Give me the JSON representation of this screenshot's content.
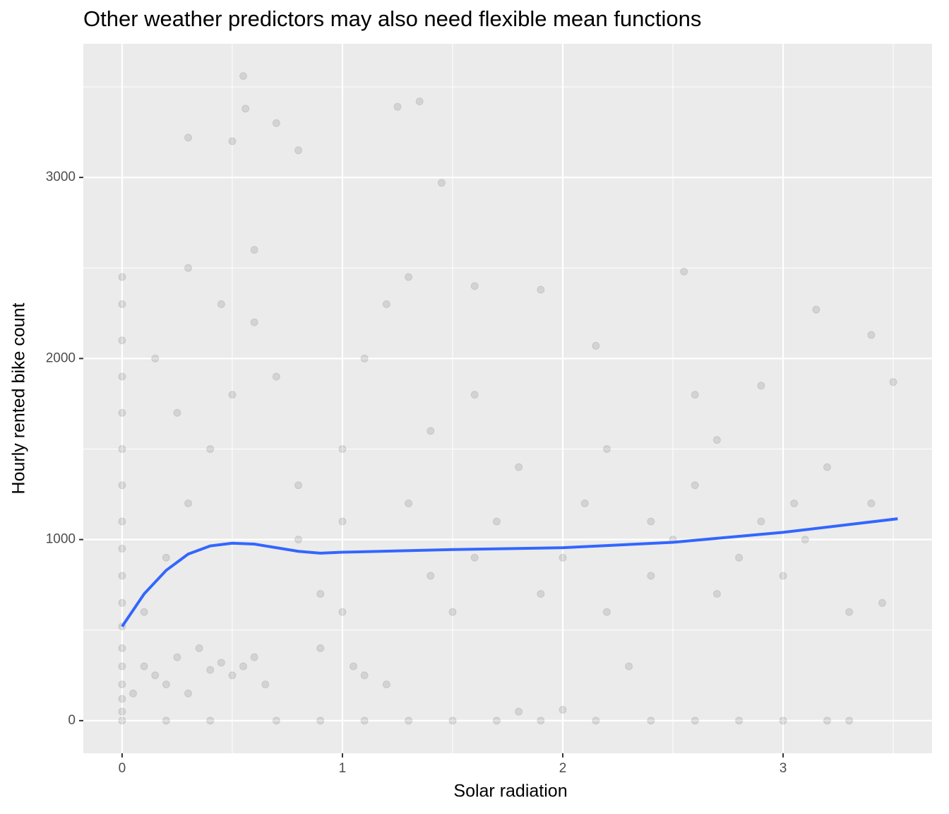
{
  "chart_data": {
    "type": "scatter",
    "title": "Other weather predictors may also need flexible mean functions",
    "x_label": "Solar radiation",
    "y_label": "Hourly rented bike count",
    "xlim": [
      -0.176,
      3.676
    ],
    "ylim": [
      -180,
      3738
    ],
    "xticks": [
      0,
      1,
      2,
      3
    ],
    "yticks": [
      0,
      1000,
      2000,
      3000
    ],
    "xminor": [
      0.5,
      1.5,
      2.5,
      3.5
    ],
    "yminor": [
      500,
      1500,
      2500,
      3500
    ],
    "grid": true,
    "points": {
      "color": "#000000",
      "opacity": 0.1,
      "x": [
        0,
        0,
        0,
        0,
        0,
        0,
        0,
        0,
        0,
        0,
        0,
        0,
        0,
        0,
        0,
        0,
        0,
        0,
        0.05,
        0.1,
        0.15,
        0.2,
        0.25,
        0.3,
        0.35,
        0.4,
        0.45,
        0.5,
        0.55,
        0.6,
        0.65,
        0.1,
        0.2,
        0.3,
        0.4,
        0.5,
        0.6,
        0.3,
        0.15,
        0.25,
        0.45,
        0.55,
        0.56,
        0.5,
        0.3,
        0.7,
        0.8,
        0.6,
        0.7,
        0.8,
        0.9,
        0.9,
        1.0,
        1.05,
        1.1,
        1.2,
        1.0,
        1.1,
        1.2,
        1.3,
        1.25,
        1.35,
        1.3,
        1.4,
        1.5,
        1.6,
        1.7,
        1.8,
        1.9,
        2.0,
        2.1,
        2.2,
        2.3,
        2.4,
        2.5,
        2.6,
        2.7,
        2.8,
        2.9,
        3.0,
        3.1,
        3.2,
        3.3,
        3.4,
        3.5,
        3.4,
        3.15,
        3.45,
        2.55,
        1.45,
        1.6,
        1.9,
        2.15,
        2.6,
        2.9,
        0.2,
        0.4,
        0.7,
        0.9,
        1.1,
        1.3,
        1.5,
        1.7,
        1.9,
        2.15,
        2.4,
        2.6,
        2.8,
        3.0,
        3.2,
        3.3,
        1.8,
        2.0,
        1.6,
        2.2,
        2.7,
        0.8,
        1.4,
        1.0,
        2.4,
        3.05
      ],
      "values": [
        0,
        50,
        120,
        200,
        300,
        400,
        520,
        650,
        800,
        950,
        1100,
        1300,
        1500,
        1700,
        1900,
        2100,
        2300,
        2450,
        150,
        300,
        250,
        200,
        350,
        150,
        400,
        280,
        320,
        250,
        300,
        350,
        200,
        600,
        900,
        1200,
        1500,
        1800,
        2200,
        2500,
        2000,
        1700,
        2300,
        3560,
        3380,
        3200,
        3220,
        3300,
        3150,
        2600,
        1900,
        1000,
        700,
        400,
        600,
        300,
        250,
        200,
        1500,
        2000,
        2300,
        2450,
        3390,
        3420,
        1200,
        800,
        600,
        900,
        1100,
        1400,
        700,
        900,
        1200,
        600,
        300,
        800,
        1000,
        1300,
        700,
        900,
        1100,
        800,
        1000,
        1400,
        600,
        1200,
        1870,
        2130,
        2270,
        650,
        2480,
        2970,
        2400,
        2380,
        2070,
        1800,
        1850,
        0,
        0,
        0,
        0,
        0,
        0,
        0,
        0,
        0,
        0,
        0,
        0,
        0,
        0,
        0,
        0,
        50,
        60,
        1800,
        1500,
        1550,
        1300,
        1600,
        1100,
        1100,
        1200
      ]
    },
    "smooth": {
      "color": "#3366ff",
      "x": [
        0,
        0.1,
        0.2,
        0.3,
        0.4,
        0.5,
        0.6,
        0.7,
        0.8,
        0.9,
        1.0,
        1.5,
        2.0,
        2.5,
        3.0,
        3.52
      ],
      "values": [
        520,
        700,
        830,
        920,
        965,
        980,
        975,
        955,
        935,
        925,
        930,
        945,
        955,
        985,
        1040,
        1115
      ]
    }
  }
}
